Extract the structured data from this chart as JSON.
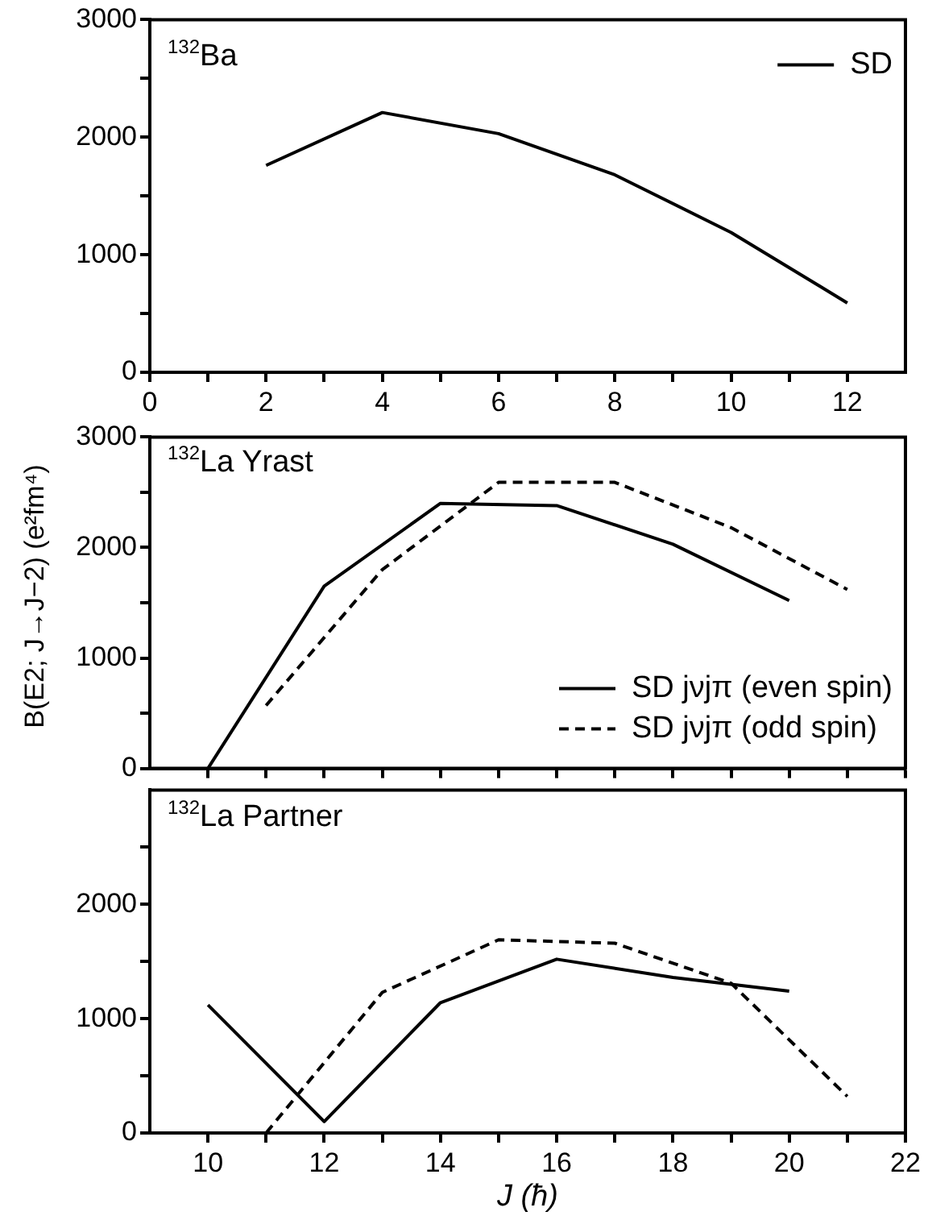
{
  "chart_data": [
    {
      "type": "line",
      "annotations": [
        "$^{132}$Ba"
      ],
      "legend": "top right",
      "grid": false,
      "line_style": "solid",
      "marker": "none",
      "xlim": [
        0,
        13
      ],
      "xticks": [
        0,
        {
          "value": 1,
          "label": null
        },
        2,
        {
          "value": 3,
          "label": null
        },
        4,
        {
          "value": 5,
          "label": null
        },
        6,
        {
          "value": 7,
          "label": null
        },
        8,
        {
          "value": 9,
          "label": null
        },
        10,
        {
          "value": 11,
          "label": null
        },
        12
      ],
      "ylim": [
        0,
        3000
      ],
      "yticks": [
        0,
        {
          "value": 500,
          "label": null
        },
        1000,
        {
          "value": 1500,
          "label": null
        },
        2000,
        {
          "value": 2500,
          "label": null
        },
        3000
      ],
      "series": [
        {
          "name": "SD",
          "color": "#000000",
          "x": [
            2,
            4,
            6,
            8,
            10,
            12
          ],
          "values": [
            1760,
            2210,
            2030,
            1680,
            1190,
            590
          ]
        }
      ]
    },
    {
      "type": "line",
      "annotations": [
        "$^{132}$La Yrast"
      ],
      "ylabel": "B(E2; J→J−2)  (e²fm⁴)",
      "legend": "bottom right",
      "grid": false,
      "marker": "none",
      "tick_labels": "y",
      "xlim": [
        9,
        22
      ],
      "xticks": [
        10,
        {
          "value": 11,
          "label": null
        },
        12,
        {
          "value": 13,
          "label": null
        },
        14,
        {
          "value": 15,
          "label": null
        },
        16,
        {
          "value": 17,
          "label": null
        },
        18,
        {
          "value": 19,
          "label": null
        },
        20,
        {
          "value": 21,
          "label": null
        },
        22
      ],
      "ylim": [
        0,
        3000
      ],
      "yticks": [
        0,
        {
          "value": 500,
          "label": null
        },
        1000,
        {
          "value": 1500,
          "label": null
        },
        2000,
        {
          "value": 2500,
          "label": null
        },
        3000
      ],
      "series": [
        {
          "name": "SD jνjπ (even spin)",
          "color": "#000000",
          "line_style": "solid",
          "x": [
            10,
            12,
            14,
            16,
            18,
            20
          ],
          "values": [
            0,
            1650,
            2400,
            2380,
            2030,
            1520
          ]
        },
        {
          "name": "SD jνjπ (odd spin)",
          "color": "#000000",
          "line_style": "dashed",
          "x": [
            11,
            13,
            15,
            17,
            19,
            21
          ],
          "values": [
            570,
            1800,
            2590,
            2590,
            2180,
            1620
          ]
        }
      ]
    },
    {
      "type": "line",
      "annotations": [
        "$^{132}$La Partner"
      ],
      "xlabel": "J (ħ)",
      "grid": false,
      "marker": "none",
      "xlim": [
        9,
        22
      ],
      "xticks": [
        10,
        {
          "value": 11,
          "label": null
        },
        12,
        {
          "value": 13,
          "label": null
        },
        14,
        {
          "value": 15,
          "label": null
        },
        16,
        {
          "value": 17,
          "label": null
        },
        18,
        {
          "value": 19,
          "label": null
        },
        20,
        {
          "value": 21,
          "label": null
        },
        22
      ],
      "ylim": [
        0,
        3000
      ],
      "yticks": [
        0,
        {
          "value": 500,
          "label": null
        },
        1000,
        {
          "value": 1500,
          "label": null
        },
        2000,
        {
          "value": 2500,
          "label": null
        }
      ],
      "series": [
        {
          "color": "#000000",
          "line_style": "solid",
          "x": [
            10,
            12,
            14,
            16,
            18,
            20
          ],
          "values": [
            1120,
            100,
            1140,
            1520,
            1360,
            1240
          ]
        },
        {
          "color": "#000000",
          "line_style": "dashed",
          "x": [
            11,
            13,
            15,
            17,
            19,
            21
          ],
          "values": [
            0,
            1230,
            1690,
            1660,
            1310,
            320
          ]
        }
      ]
    }
  ]
}
